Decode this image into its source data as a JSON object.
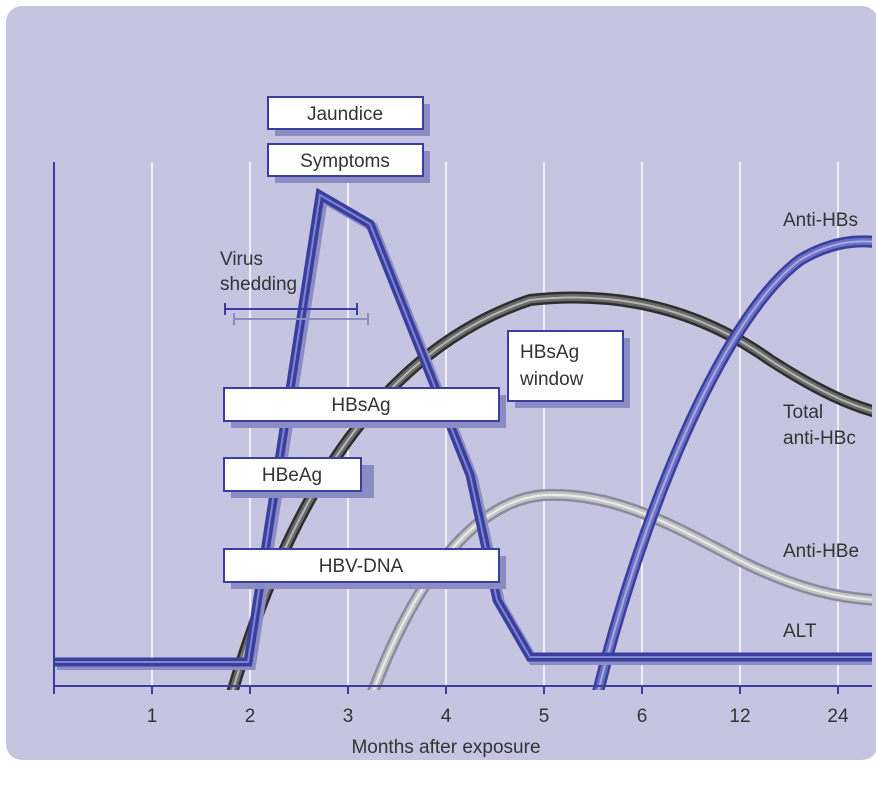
{
  "colors": {
    "panel": "#c5c5e2",
    "grid": "#ffffff",
    "axis": "#3a3f9e",
    "alt_curve": "#3a3f9e",
    "anti_hbs_curve": "#5a5fb5",
    "total_anti_hbc_curve": "#444444",
    "anti_hbe_curve": "#a8a8a8",
    "box_shadow": "#8c8cc4",
    "text": "#333333"
  },
  "chart_data": {
    "type": "line",
    "xlabel": "Months after exposure",
    "x_ticks": [
      "1",
      "2",
      "3",
      "4",
      "5",
      "6",
      "12",
      "24"
    ],
    "series": [
      {
        "name": "ALT",
        "x": [
          "0",
          "1",
          "2",
          "2.7",
          "3.2",
          "4.2",
          "4.5",
          "4.8",
          "6",
          "12",
          "24"
        ],
        "y": [
          0.02,
          0.02,
          0.02,
          0.84,
          0.8,
          0.34,
          0.1,
          0.03,
          0.03,
          0.03,
          0.03
        ]
      },
      {
        "name": "Anti-HBs",
        "x": [
          "5.5",
          "6",
          "12",
          "24"
        ],
        "y": [
          0.0,
          0.3,
          0.72,
          0.82
        ]
      },
      {
        "name": "Total anti-HBc",
        "x": [
          "1.8",
          "3",
          "5",
          "6",
          "12",
          "24"
        ],
        "y": [
          0.0,
          0.5,
          0.68,
          0.66,
          0.55,
          0.44
        ]
      },
      {
        "name": "Anti-HBe",
        "x": [
          "3.2",
          "4",
          "5",
          "6",
          "12",
          "24"
        ],
        "y": [
          0.0,
          0.26,
          0.37,
          0.33,
          0.22,
          0.14
        ]
      }
    ]
  },
  "curve_labels": {
    "anti_hbs": "Anti-HBs",
    "total_anti_hbc_line1": "Total",
    "total_anti_hbc_line2": "anti-HBc",
    "anti_hbe": "Anti-HBe",
    "alt": "ALT"
  },
  "markers": {
    "jaundice": "Jaundice",
    "symptoms": "Symptoms",
    "hbsag": "HBsAg",
    "hbeag": "HBeAg",
    "hbv_dna": "HBV-DNA",
    "window_line1": "HBsAg",
    "window_line2": "window",
    "virus_shedding_line1": "Virus",
    "virus_shedding_line2": "shedding"
  }
}
